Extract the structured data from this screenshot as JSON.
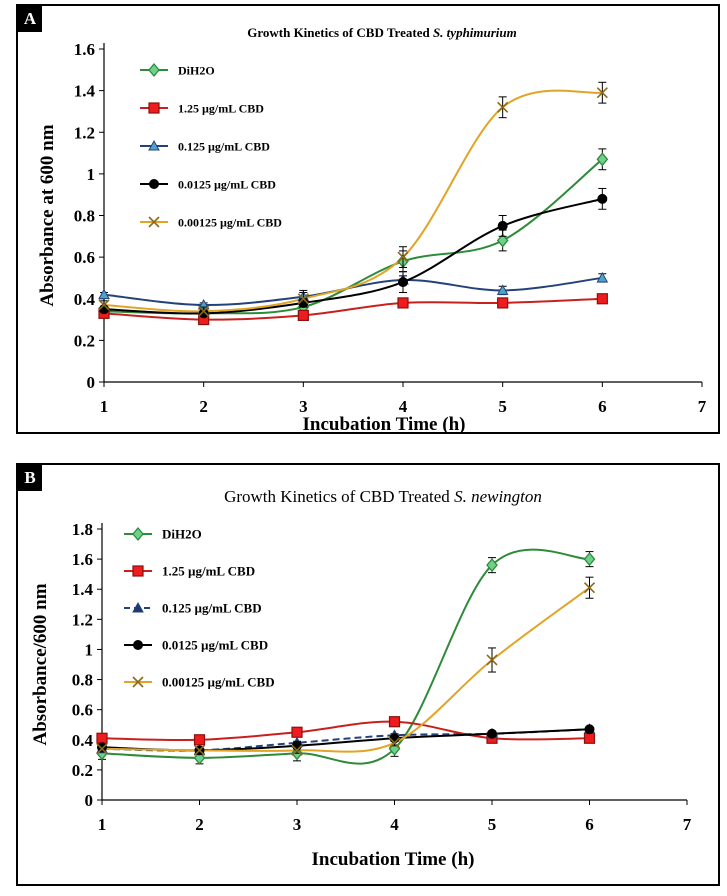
{
  "chart_data": [
    {
      "type": "line",
      "panel_label": "A",
      "title_prefix": "Growth Kinetics of CBD Treated ",
      "title_italic": "S. typhimurium",
      "xlabel": "Incubation Time (h)",
      "ylabel": "Absorbance at 600 nm",
      "xlim": [
        1,
        7
      ],
      "ylim": [
        0,
        1.6
      ],
      "x_ticks": [
        "1",
        "2",
        "3",
        "4",
        "5",
        "6",
        "7"
      ],
      "y_ticks": [
        "0",
        "0.2",
        "0.4",
        "0.6",
        "0.8",
        "1",
        "1.2",
        "1.4",
        "1.6"
      ],
      "legend_position": "top-left",
      "series": [
        {
          "name": "DiH2O",
          "color": "#2e8b3a",
          "marker": "diamond",
          "dash": false,
          "x": [
            1,
            2,
            3,
            4,
            5,
            6
          ],
          "y": [
            0.34,
            0.33,
            0.36,
            0.58,
            0.68,
            1.07
          ],
          "err": [
            0.02,
            0.02,
            0.03,
            0.05,
            0.05,
            0.05
          ]
        },
        {
          "name": "1.25 µg/mL CBD",
          "color": "#c8201e",
          "marker": "square",
          "dash": false,
          "x": [
            1,
            2,
            3,
            4,
            5,
            6
          ],
          "y": [
            0.33,
            0.3,
            0.32,
            0.38,
            0.38,
            0.4
          ],
          "err": [
            0.01,
            0.01,
            0.01,
            0.01,
            0.01,
            0.01
          ]
        },
        {
          "name": "0.125 µg/mL CBD",
          "color": "#24427a",
          "marker": "triangle",
          "dash": false,
          "x": [
            1,
            2,
            3,
            4,
            5,
            6
          ],
          "y": [
            0.42,
            0.37,
            0.41,
            0.49,
            0.44,
            0.5
          ],
          "err": [
            0.01,
            0.01,
            0.02,
            0.02,
            0.02,
            0.02
          ]
        },
        {
          "name": "0.0125 µg/mL CBD",
          "color": "#000000",
          "marker": "circle",
          "dash": false,
          "x": [
            1,
            2,
            3,
            4,
            5,
            6
          ],
          "y": [
            0.35,
            0.33,
            0.38,
            0.48,
            0.75,
            0.88
          ],
          "err": [
            0.01,
            0.01,
            0.02,
            0.05,
            0.05,
            0.05
          ]
        },
        {
          "name": "0.00125 µg/mL CBD",
          "color": "#e0a526",
          "marker": "x",
          "dash": false,
          "x": [
            1,
            2,
            3,
            4,
            5,
            6
          ],
          "y": [
            0.37,
            0.34,
            0.4,
            0.6,
            1.32,
            1.39
          ],
          "err": [
            0.02,
            0.02,
            0.04,
            0.05,
            0.05,
            0.05
          ]
        }
      ]
    },
    {
      "type": "line",
      "panel_label": "B",
      "title_prefix": "Growth Kinetics of CBD Treated ",
      "title_italic": "S. newington",
      "xlabel": "Incubation Time (h)",
      "ylabel": "Absorbance/600 nm",
      "xlim": [
        1,
        7
      ],
      "ylim": [
        0,
        1.8
      ],
      "x_ticks": [
        "1",
        "2",
        "3",
        "4",
        "5",
        "6",
        "7"
      ],
      "y_ticks": [
        "0",
        "0.2",
        "0.4",
        "0.6",
        "0.8",
        "1",
        "1.2",
        "1.4",
        "1.6",
        "1.8"
      ],
      "legend_position": "top-left",
      "series": [
        {
          "name": "DiH2O",
          "color": "#2e8b3a",
          "marker": "diamond",
          "dash": false,
          "x": [
            1,
            2,
            3,
            4,
            5,
            6
          ],
          "y": [
            0.31,
            0.28,
            0.31,
            0.34,
            1.56,
            1.6
          ],
          "err": [
            0.04,
            0.04,
            0.05,
            0.05,
            0.05,
            0.05
          ]
        },
        {
          "name": "1.25 µg/mL CBD",
          "color": "#c8201e",
          "marker": "square",
          "dash": false,
          "x": [
            1,
            2,
            3,
            4,
            5,
            6
          ],
          "y": [
            0.41,
            0.4,
            0.45,
            0.52,
            0.41,
            0.41
          ],
          "err": [
            0.02,
            0.02,
            0.02,
            0.02,
            0.02,
            0.02
          ]
        },
        {
          "name": "0.125 µg/mL CBD",
          "color": "#24427a",
          "marker": "triangle",
          "dash": true,
          "x": [
            1,
            2,
            3,
            4,
            5,
            6
          ],
          "y": [
            0.34,
            0.33,
            0.38,
            0.43,
            0.44,
            0.47
          ],
          "err": [
            0.01,
            0.01,
            0.01,
            0.01,
            0.01,
            0.01
          ]
        },
        {
          "name": "0.0125 µg/mL CBD",
          "color": "#000000",
          "marker": "circle",
          "dash": false,
          "x": [
            1,
            2,
            3,
            4,
            5,
            6
          ],
          "y": [
            0.35,
            0.33,
            0.36,
            0.41,
            0.44,
            0.47
          ],
          "err": [
            0.01,
            0.01,
            0.01,
            0.01,
            0.01,
            0.01
          ]
        },
        {
          "name": "0.00125 µg/mL CBD",
          "color": "#e0a526",
          "marker": "x",
          "dash": false,
          "x": [
            1,
            2,
            3,
            4,
            5,
            6
          ],
          "y": [
            0.34,
            0.33,
            0.33,
            0.38,
            0.93,
            1.41
          ],
          "err": [
            0.02,
            0.02,
            0.02,
            0.02,
            0.08,
            0.07
          ]
        }
      ]
    }
  ]
}
